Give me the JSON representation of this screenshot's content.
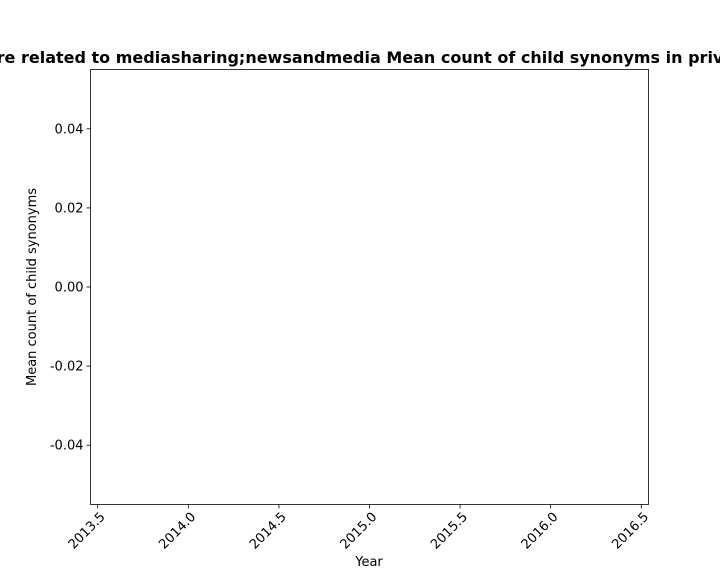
{
  "chart_data": {
    "type": "line",
    "title": "re related to mediasharing;newsandmedia Mean count of child synonyms in priv",
    "xlabel": "Year",
    "ylabel": "Mean count of child synonyms",
    "xlim": [
      2013.46,
      2016.54
    ],
    "ylim": [
      -0.055,
      0.055
    ],
    "x_ticks": [
      "2013.5",
      "2014.0",
      "2014.5",
      "2015.0",
      "2015.5",
      "2016.0",
      "2016.5"
    ],
    "y_ticks": [
      "0.04",
      "0.02",
      "0.00",
      "-0.02",
      "-0.04"
    ],
    "series": [],
    "grid": false,
    "legend": "none"
  }
}
